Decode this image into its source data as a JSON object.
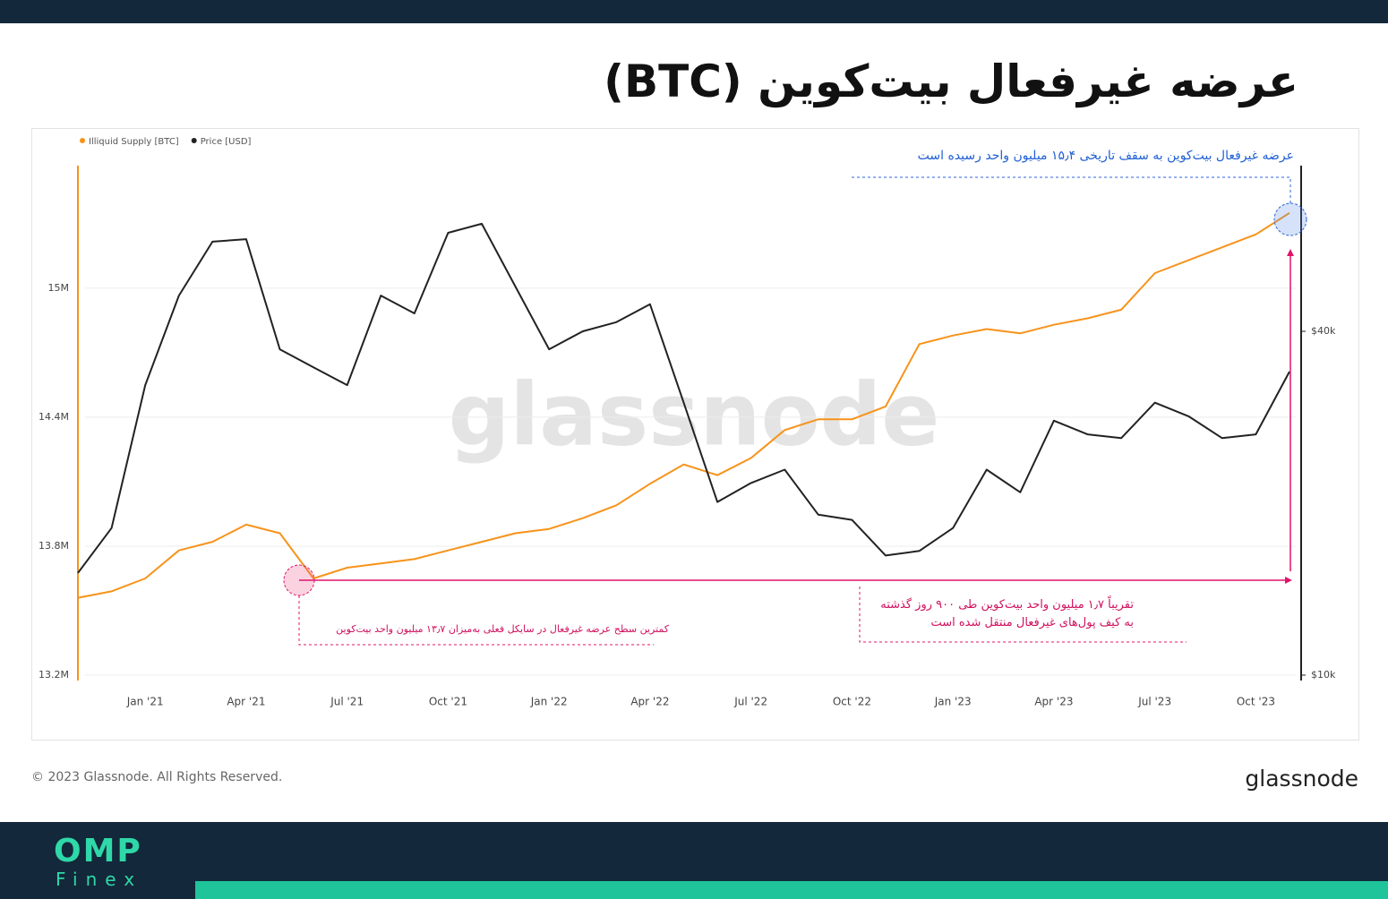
{
  "chart_data": {
    "type": "line",
    "title": "عرضه غیرفعال بیت‌کوین (BTC)",
    "watermark": "glassnode",
    "categories": [
      null,
      null,
      "Jan '21",
      null,
      null,
      "Apr '21",
      null,
      null,
      "Jul '21",
      null,
      null,
      "Oct '21",
      null,
      null,
      "Jan '22",
      null,
      null,
      "Apr '22",
      null,
      null,
      "Jul '22",
      null,
      null,
      "Oct '22",
      null,
      null,
      "Jan '23",
      null,
      null,
      "Apr '23",
      null,
      null,
      "Jul '23",
      null,
      null,
      "Oct '23",
      null
    ],
    "series": [
      {
        "name": "Illiquid Supply [BTC]",
        "color": "#f7931a",
        "values": [
          13560000,
          13590000,
          13650000,
          13780000,
          13820000,
          13900000,
          13860000,
          13650000,
          13700000,
          13720000,
          13740000,
          13780000,
          13820000,
          13860000,
          13880000,
          13930000,
          13990000,
          14090000,
          14180000,
          14130000,
          14210000,
          14340000,
          14390000,
          14390000,
          14450000,
          14740000,
          14780000,
          14810000,
          14790000,
          14830000,
          14860000,
          14900000,
          15070000,
          15130000,
          15190000,
          15250000,
          15350000
        ]
      },
      {
        "name": "Price [USD]",
        "color": "#222222",
        "axis": "y2",
        "values": [
          15100,
          18100,
          32200,
          46200,
          57400,
          58000,
          37200,
          34600,
          32200,
          46200,
          43000,
          59500,
          61700,
          47900,
          37200,
          40000,
          41500,
          44600,
          30000,
          20100,
          21700,
          22900,
          19100,
          18700,
          16200,
          16500,
          18100,
          22900,
          20900,
          27900,
          26400,
          26000,
          30000,
          28400,
          26000,
          26400,
          34000
        ]
      }
    ],
    "ylim": [
      13175000,
      15570000
    ],
    "yticks": [
      {
        "value": 13200000,
        "label": "13.2M"
      },
      {
        "value": 13800000,
        "label": "13.8M"
      },
      {
        "value": 14400000,
        "label": "14.4M"
      },
      {
        "value": 15000000,
        "label": "15M"
      }
    ],
    "y2lim": [
      9786,
      78000
    ],
    "y2ticks": [
      {
        "value": 10000,
        "label": "$10k"
      },
      {
        "value": 40000,
        "label": "$40k"
      }
    ],
    "y2_log_scale": true,
    "grid": true,
    "annotations": [
      "عرضه غیرفعال بیت‌کوین به سقف تاریخی ۱۵٫۴ میلیون واحد رسیده است",
      "تقریباً ۱٫۷ میلیون واحد بیت‌کوین طی ۹۰۰ روز گذشته",
      "به کیف پول‌های غیرفعال منتقل شده است",
      "کمترین سطح عرضه غیرفعال در سایکل فعلی به‌میزان ۱۳٫۷ میلیون واحد بیت‌کوین"
    ]
  },
  "footer": {
    "copyright": "© 2023 Glassnode. All Rights Reserved.",
    "logo": "glassnode"
  },
  "brand": {
    "name": "OMP",
    "sub": "Finex"
  }
}
